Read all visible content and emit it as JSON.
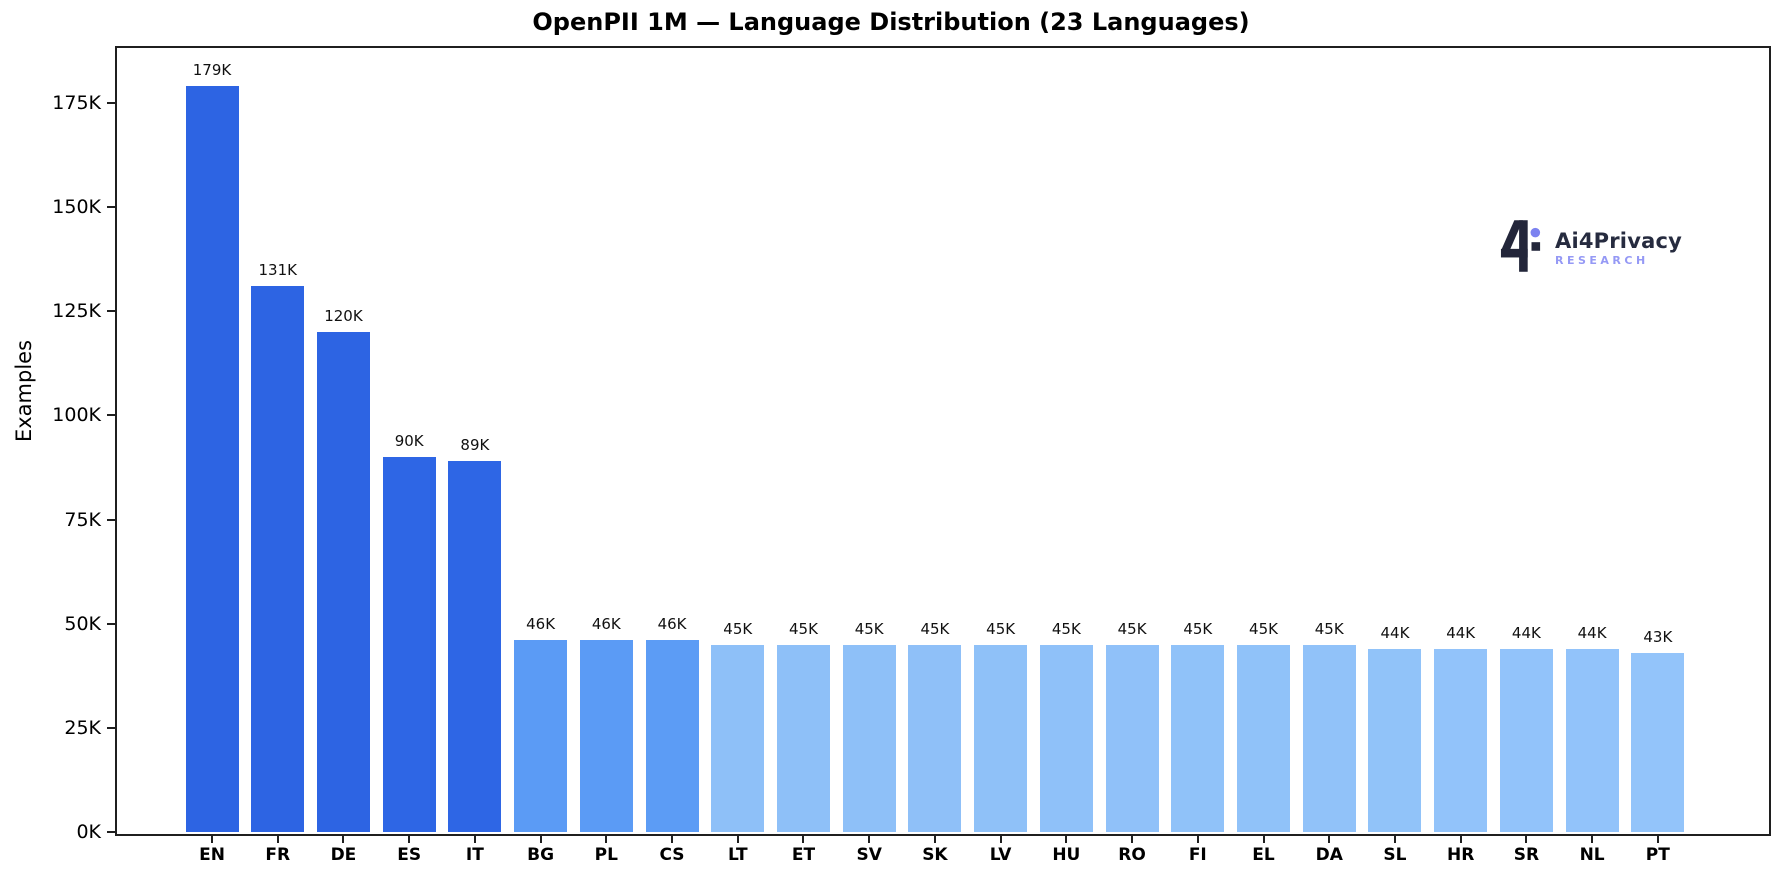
{
  "figure": {
    "title": "OpenPII 1M — Language Distribution (23 Languages)",
    "background_color": "#ffffff",
    "axis_color": "#1f1f1f"
  },
  "chart_data": {
    "type": "bar",
    "title": "OpenPII 1M — Language Distribution (23 Languages)",
    "xlabel": "",
    "ylabel": "Examples",
    "grid": false,
    "legend": "none",
    "categories": [
      "EN",
      "FR",
      "DE",
      "ES",
      "IT",
      "BG",
      "PL",
      "CS",
      "LT",
      "ET",
      "SV",
      "SK",
      "LV",
      "HU",
      "RO",
      "FI",
      "EL",
      "DA",
      "SL",
      "HR",
      "SR",
      "NL",
      "PT"
    ],
    "values_k": [
      179,
      131,
      120,
      90,
      89,
      46,
      46,
      46,
      45,
      45,
      45,
      45,
      45,
      45,
      45,
      45,
      45,
      45,
      44,
      44,
      44,
      44,
      43
    ],
    "value_labels": [
      "179K",
      "131K",
      "120K",
      "90K",
      "89K",
      "46K",
      "46K",
      "46K",
      "45K",
      "45K",
      "45K",
      "45K",
      "45K",
      "45K",
      "45K",
      "45K",
      "45K",
      "45K",
      "44K",
      "44K",
      "44K",
      "44K",
      "43K"
    ],
    "bar_colors": [
      "#2d64e3",
      "#2d64e3",
      "#2d64e3",
      "#2e66e5",
      "#2e66e5",
      "#5b9bf5",
      "#5b9bf5",
      "#5c9cf5",
      "#8ec0f8",
      "#8ec0f8",
      "#8ec0f8",
      "#8fc0f8",
      "#8fc1f8",
      "#8fc1f9",
      "#90c1f9",
      "#90c2f9",
      "#90c2f9",
      "#91c2f9",
      "#91c3f9",
      "#92c3fa",
      "#92c3fa",
      "#92c3fa",
      "#93c4fa"
    ],
    "ylim_k": [
      0,
      188.7
    ],
    "ytick_values_k": [
      0,
      25,
      50,
      75,
      100,
      125,
      150,
      175
    ],
    "ytick_labels": [
      "0K",
      "25K",
      "50K",
      "75K",
      "100K",
      "125K",
      "150K",
      "175K"
    ]
  },
  "logo": {
    "name": "Ai4Privacy",
    "subtitle": "RESEARCH",
    "name_color": "#262b3f",
    "subtitle_color": "#9599f5",
    "mark_color": "#23263a",
    "dot_color": "#7c82f0"
  }
}
